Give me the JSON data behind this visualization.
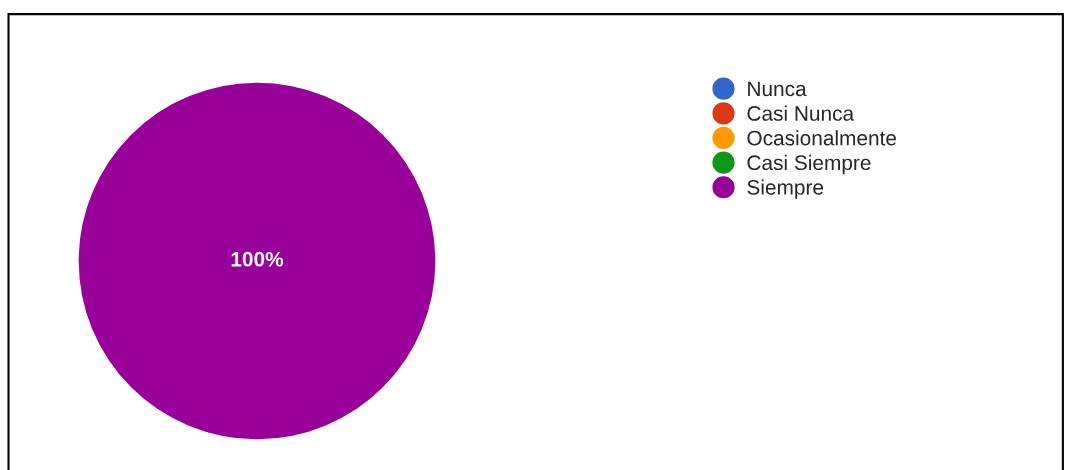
{
  "chart_data": {
    "type": "pie",
    "categories": [
      "Nunca",
      "Casi Nunca",
      "Ocasionalmente",
      "Casi Siempre",
      "Siempre"
    ],
    "values": [
      0,
      0,
      0,
      0,
      100
    ],
    "colors": [
      "#3366cc",
      "#dc3912",
      "#ff9900",
      "#109618",
      "#990099"
    ],
    "value_labels": [
      null,
      null,
      null,
      null,
      "100%"
    ],
    "legend": "right"
  }
}
